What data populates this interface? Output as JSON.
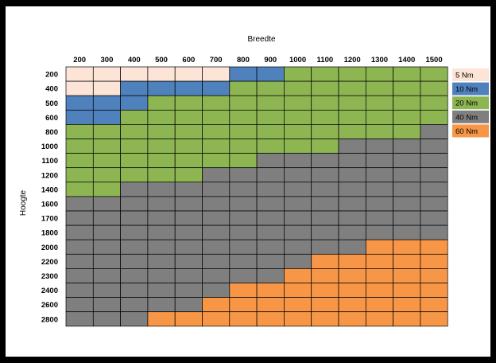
{
  "chart_data": {
    "type": "heatmap",
    "x_title": "Breedte",
    "y_title": "Hoogte",
    "columns": [
      "200",
      "300",
      "400",
      "500",
      "600",
      "700",
      "800",
      "900",
      "1000",
      "1100",
      "1200",
      "1300",
      "1400",
      "1500"
    ],
    "rows": [
      "200",
      "400",
      "500",
      "600",
      "800",
      "1000",
      "1100",
      "1200",
      "1400",
      "1600",
      "1700",
      "1800",
      "2000",
      "2200",
      "2300",
      "2400",
      "2600",
      "2800"
    ],
    "legend": [
      {
        "key": "5",
        "label": "5 Nm",
        "color": "#fce4d6"
      },
      {
        "key": "10",
        "label": "10 Nm",
        "color": "#4f81bd"
      },
      {
        "key": "20",
        "label": "20 Nm",
        "color": "#8db552"
      },
      {
        "key": "40",
        "label": "40 Nm",
        "color": "#7f7f7f"
      },
      {
        "key": "60",
        "label": "60 Nm",
        "color": "#f79646"
      }
    ],
    "values": [
      [
        5,
        5,
        5,
        5,
        5,
        5,
        10,
        10,
        20,
        20,
        20,
        20,
        20,
        20
      ],
      [
        5,
        5,
        10,
        10,
        10,
        10,
        20,
        20,
        20,
        20,
        20,
        20,
        20,
        20
      ],
      [
        10,
        10,
        10,
        20,
        20,
        20,
        20,
        20,
        20,
        20,
        20,
        20,
        20,
        20
      ],
      [
        10,
        10,
        20,
        20,
        20,
        20,
        20,
        20,
        20,
        20,
        20,
        20,
        20,
        20
      ],
      [
        20,
        20,
        20,
        20,
        20,
        20,
        20,
        20,
        20,
        20,
        20,
        20,
        20,
        40
      ],
      [
        20,
        20,
        20,
        20,
        20,
        20,
        20,
        20,
        20,
        20,
        40,
        40,
        40,
        40
      ],
      [
        20,
        20,
        20,
        20,
        20,
        20,
        20,
        40,
        40,
        40,
        40,
        40,
        40,
        40
      ],
      [
        20,
        20,
        20,
        20,
        20,
        40,
        40,
        40,
        40,
        40,
        40,
        40,
        40,
        40
      ],
      [
        20,
        20,
        40,
        40,
        40,
        40,
        40,
        40,
        40,
        40,
        40,
        40,
        40,
        40
      ],
      [
        40,
        40,
        40,
        40,
        40,
        40,
        40,
        40,
        40,
        40,
        40,
        40,
        40,
        40
      ],
      [
        40,
        40,
        40,
        40,
        40,
        40,
        40,
        40,
        40,
        40,
        40,
        40,
        40,
        40
      ],
      [
        40,
        40,
        40,
        40,
        40,
        40,
        40,
        40,
        40,
        40,
        40,
        40,
        40,
        40
      ],
      [
        40,
        40,
        40,
        40,
        40,
        40,
        40,
        40,
        40,
        40,
        40,
        60,
        60,
        60
      ],
      [
        40,
        40,
        40,
        40,
        40,
        40,
        40,
        40,
        40,
        60,
        60,
        60,
        60,
        60
      ],
      [
        40,
        40,
        40,
        40,
        40,
        40,
        40,
        40,
        60,
        60,
        60,
        60,
        60,
        60
      ],
      [
        40,
        40,
        40,
        40,
        40,
        40,
        60,
        60,
        60,
        60,
        60,
        60,
        60,
        60
      ],
      [
        40,
        40,
        40,
        40,
        40,
        60,
        60,
        60,
        60,
        60,
        60,
        60,
        60,
        60
      ],
      [
        40,
        40,
        40,
        60,
        60,
        60,
        60,
        60,
        60,
        60,
        60,
        60,
        60,
        60
      ]
    ]
  }
}
